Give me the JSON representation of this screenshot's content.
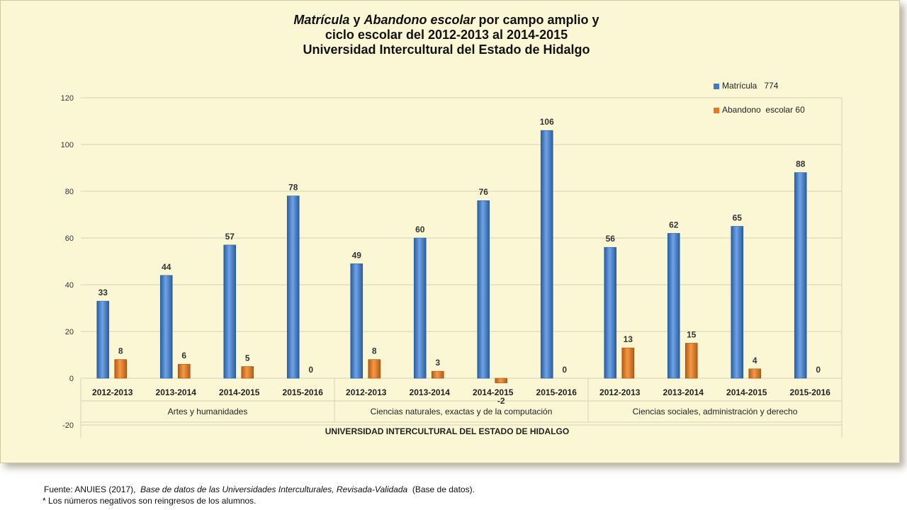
{
  "title": {
    "line1_part1": "Matrícula",
    "line1_part2": "y",
    "line1_part3": "Abandono escolar",
    "line1_part4": "por campo amplio y",
    "line2": "ciclo escolar del 2012-2013 al 2014-2015",
    "line3": "Universidad Intercultural del Estado de Hidalgo"
  },
  "colors": {
    "matricula": "#3f7bc7",
    "abandono": "#e07a24",
    "background": "#fbf7d5"
  },
  "chart_data": {
    "type": "bar",
    "ylim": [
      -20,
      120
    ],
    "yticks": [
      -20,
      0,
      20,
      40,
      60,
      80,
      100,
      120
    ],
    "grid": true,
    "legend_position": "top-right",
    "group_label": "UNIVERSIDAD INTERCULTURAL DEL ESTADO DE HIDALGO",
    "fields": [
      "Artes y humanidades",
      "Ciencias naturales, exactas y de la computación",
      "Ciencias sociales, administración y derecho"
    ],
    "categories": [
      "2012-2013",
      "2013-2014",
      "2014-2015",
      "2015-2016",
      "2012-2013",
      "2013-2014",
      "2014-2015",
      "2015-2016",
      "2012-2013",
      "2013-2014",
      "2014-2015",
      "2015-2016"
    ],
    "series": [
      {
        "name": "Matrícula   774",
        "values": [
          33,
          44,
          57,
          78,
          49,
          60,
          76,
          106,
          56,
          62,
          65,
          88
        ]
      },
      {
        "name": "Abandono  escolar 60",
        "values": [
          8,
          6,
          5,
          0,
          8,
          3,
          -2,
          0,
          13,
          15,
          4,
          0
        ]
      }
    ]
  },
  "footer": {
    "source_prefix": "Fuente: ANUIES (2017),",
    "source_title": "Base de datos de las Universidades  Interculturales, Revisada-Validada",
    "source_suffix": "(Base de datos).",
    "note": "* Los números negativos  son reingresos de los alumnos."
  }
}
